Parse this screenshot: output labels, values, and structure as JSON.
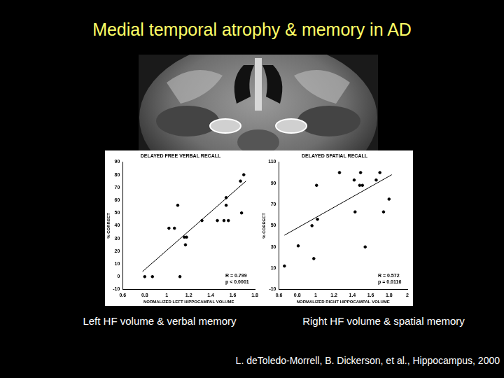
{
  "slide": {
    "title": "Medial temporal atrophy & memory in AD",
    "captions": [
      "Left HF volume & verbal memory",
      "Right HF volume & spatial memory"
    ],
    "citation": "L. deToledo-Morrell, B. Dickerson, et al., Hippocampus, 2000"
  },
  "chart_data": [
    {
      "type": "scatter",
      "title": "DELAYED FREE VERBAL RECALL",
      "x_label": "NORMALIZED LEFT HIPPOCAMPAL VOLUME",
      "y_label": "% CORRECT",
      "annotations": [
        "R = 0.799",
        "p < 0.0001"
      ],
      "series": [
        {
          "color": "#000000",
          "marker": "circle",
          "x": [
            0.8,
            0.87,
            1.02,
            1.07,
            1.1,
            1.12,
            1.16,
            1.18,
            1.17,
            1.32,
            1.46,
            1.54,
            1.54,
            1.52,
            1.56,
            1.68,
            1.67,
            1.7
          ],
          "values": [
            0,
            0,
            38,
            38,
            56,
            0,
            31,
            31,
            25,
            44,
            44,
            56,
            62,
            44,
            44,
            50,
            75,
            80
          ]
        }
      ],
      "trend_line": {
        "color": "#000000",
        "line_style": "solid",
        "x": [
          0.78,
          1.72
        ],
        "values": [
          4,
          75
        ]
      },
      "xlim": [
        0.6,
        1.8
      ],
      "xticks": [
        0.6,
        0.8,
        1,
        1.2,
        1.4,
        1.6,
        1.8
      ],
      "ylim": [
        -10,
        90
      ],
      "yticks": [
        -10,
        0,
        10,
        20,
        30,
        40,
        50,
        60,
        70,
        80,
        90
      ],
      "grid": false
    },
    {
      "type": "scatter",
      "title": "DELAYED SPATIAL RECALL",
      "x_label": "NORMALIZED RIGHT HIPPOCAMPAL VOLUME",
      "y_label": "% CORRECT",
      "annotations": [
        "R = 0.572",
        "p = 0.0116"
      ],
      "series": [
        {
          "color": "#000000",
          "marker": "circle",
          "x": [
            0.66,
            0.81,
            0.96,
            0.98,
            1.01,
            1.02,
            1.26,
            1.42,
            1.49,
            1.48,
            1.51,
            1.43,
            1.54,
            1.66,
            1.7,
            1.74,
            1.8
          ],
          "values": [
            12,
            31,
            50,
            19,
            88,
            56,
            100,
            93,
            100,
            88,
            88,
            63,
            30,
            93,
            100,
            63,
            75
          ]
        }
      ],
      "trend_line": {
        "color": "#000000",
        "line_style": "solid",
        "x": [
          0.66,
          1.83
        ],
        "values": [
          41,
          98
        ]
      },
      "xlim": [
        0.6,
        2.0
      ],
      "xticks": [
        0.6,
        0.8,
        1,
        1.2,
        1.4,
        1.6,
        1.8,
        2
      ],
      "ylim": [
        -10,
        110
      ],
      "yticks": [
        -10,
        10,
        30,
        50,
        70,
        90,
        110
      ],
      "grid": false
    }
  ]
}
